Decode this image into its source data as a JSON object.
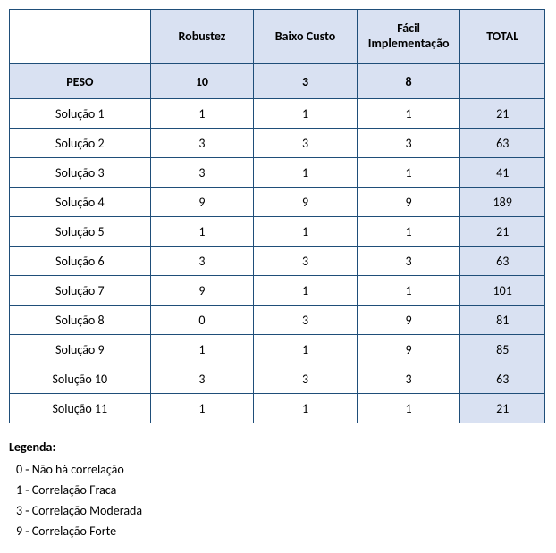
{
  "table": {
    "corner_blank": "",
    "criteria": [
      "Robustez",
      "Baixo Custo",
      "Fácil Implementação"
    ],
    "total_header": "TOTAL",
    "peso_label": "PESO",
    "weights": [
      10,
      3,
      8
    ],
    "rows": [
      {
        "label": "Solução 1",
        "scores": [
          1,
          1,
          1
        ],
        "total": 21
      },
      {
        "label": "Solução 2",
        "scores": [
          3,
          3,
          3
        ],
        "total": 63
      },
      {
        "label": "Solução 3",
        "scores": [
          3,
          1,
          1
        ],
        "total": 41
      },
      {
        "label": "Solução 4",
        "scores": [
          9,
          9,
          9
        ],
        "total": 189
      },
      {
        "label": "Solução 5",
        "scores": [
          1,
          1,
          1
        ],
        "total": 21
      },
      {
        "label": "Solução 6",
        "scores": [
          3,
          3,
          3
        ],
        "total": 63
      },
      {
        "label": "Solução 7",
        "scores": [
          9,
          1,
          1
        ],
        "total": 101
      },
      {
        "label": "Solução 8",
        "scores": [
          0,
          3,
          9
        ],
        "total": 81
      },
      {
        "label": "Solução 9",
        "scores": [
          1,
          1,
          9
        ],
        "total": 85
      },
      {
        "label": "Solução 10",
        "scores": [
          3,
          3,
          3
        ],
        "total": 63
      },
      {
        "label": "Solução 11",
        "scores": [
          1,
          1,
          1
        ],
        "total": 21
      }
    ]
  },
  "legend": {
    "title": "Legenda:",
    "items": [
      "0 - Não há correlação",
      "1 - Correlação Fraca",
      "3 - Correlação Moderada",
      "9 - Correlação Forte"
    ]
  },
  "style": {
    "header_bg": "#d9e1f2",
    "border_color": "#1f4e79",
    "font_family": "Calibri, Arial, sans-serif"
  }
}
